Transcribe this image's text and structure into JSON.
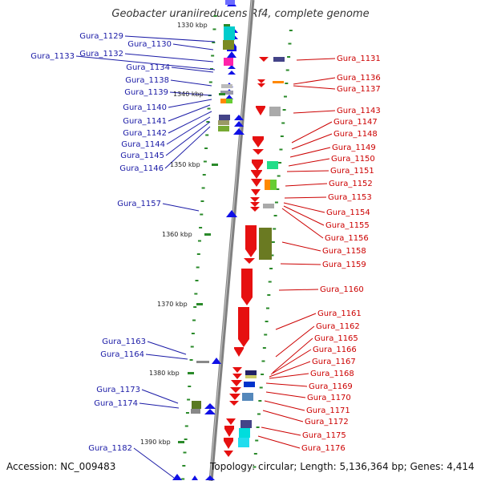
{
  "title": "Geobacter uraniireducens Rf4, complete genome",
  "footer": {
    "accession": "Accession: NC_009483",
    "topology": "Topology: circular; Length: 5,136,364 bp; Genes: 4,414"
  },
  "colors": {
    "left_label": "#1a1aa6",
    "right_label": "#cc0000",
    "axis": "#808080",
    "tick": "#2a8a2a",
    "forward_gene": "#1010e6",
    "reverse_gene": "#e61010"
  },
  "kbp_ticks": [
    "1330 kbp",
    "1340 kbp",
    "1350 kbp",
    "1360 kbp",
    "1370 kbp",
    "1380 kbp",
    "1390 kbp"
  ],
  "left_labels": [
    "Gura_1129",
    "Gura_1130",
    "Gura_1133",
    "Gura_1132",
    "Gura_1134",
    "Gura_1138",
    "Gura_1139",
    "Gura_1140",
    "Gura_1141",
    "Gura_1142",
    "Gura_1144",
    "Gura_1145",
    "Gura_1146",
    "Gura_1157",
    "Gura_1163",
    "Gura_1164",
    "Gura_1173",
    "Gura_1174",
    "Gura_1182"
  ],
  "right_labels": [
    "Gura_1131",
    "Gura_1136",
    "Gura_1137",
    "Gura_1143",
    "Gura_1147",
    "Gura_1148",
    "Gura_1149",
    "Gura_1150",
    "Gura_1151",
    "Gura_1152",
    "Gura_1153",
    "Gura_1154",
    "Gura_1155",
    "Gura_1156",
    "Gura_1158",
    "Gura_1159",
    "Gura_1160",
    "Gura_1161",
    "Gura_1162",
    "Gura_1165",
    "Gura_1166",
    "Gura_1167",
    "Gura_1168",
    "Gura_1169",
    "Gura_1170",
    "Gura_1171",
    "Gura_1172",
    "Gura_1175",
    "Gura_1176"
  ]
}
